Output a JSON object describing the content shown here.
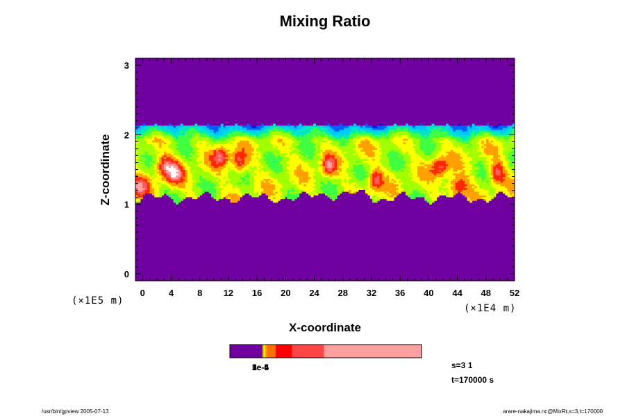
{
  "chart_data": {
    "type": "heatmap",
    "title": "Mixing Ratio",
    "xlabel": "X-coordinate",
    "ylabel": "Z-coordinate",
    "x_scale_label": "(×1E4 m)",
    "y_scale_label": "(×1E5 m)",
    "xlim": [
      -1,
      52
    ],
    "ylim": [
      -0.1,
      3.1
    ],
    "xticks": [
      "0",
      "4",
      "8",
      "12",
      "16",
      "20",
      "24",
      "28",
      "32",
      "36",
      "40",
      "44",
      "48",
      "52"
    ],
    "yticks": [
      "0",
      "1",
      "2",
      "3"
    ],
    "mixed_layer": {
      "z_bottom": 1.1,
      "z_top": 2.15
    },
    "background_color": "#7000a0",
    "palette": [
      "#7000a0",
      "#1010e0",
      "#0060ff",
      "#00c8ff",
      "#00e8c0",
      "#40ff40",
      "#a0ff00",
      "#ffff00",
      "#ffa000",
      "#ff2800",
      "#ff5a5a",
      "#ffa0a0",
      "#ffffff"
    ],
    "colorbar": {
      "segments": [
        {
          "color": "#7000a0",
          "width": 0.17
        },
        {
          "color": "#d0b000",
          "width": 0.007
        },
        {
          "color": "#ffff00",
          "width": 0.005
        },
        {
          "color": "#ffa000",
          "width": 0.012
        },
        {
          "color": "#ff7000",
          "width": 0.044
        },
        {
          "color": "#ff0000",
          "width": 0.087
        },
        {
          "color": "#ff4545",
          "width": 0.167
        },
        {
          "color": "#ffa0a0",
          "width": 0.508
        }
      ],
      "labels": [
        "1e-6",
        "2e-5",
        "5e-4"
      ]
    }
  },
  "info": {
    "line1": "s=3 1",
    "line2": "t=170000 s"
  },
  "footer": {
    "left": "/usr/bin/gpview 2005-07-13",
    "right": "arare-nakajima.nc@MixRt,s=3,t=170000"
  }
}
